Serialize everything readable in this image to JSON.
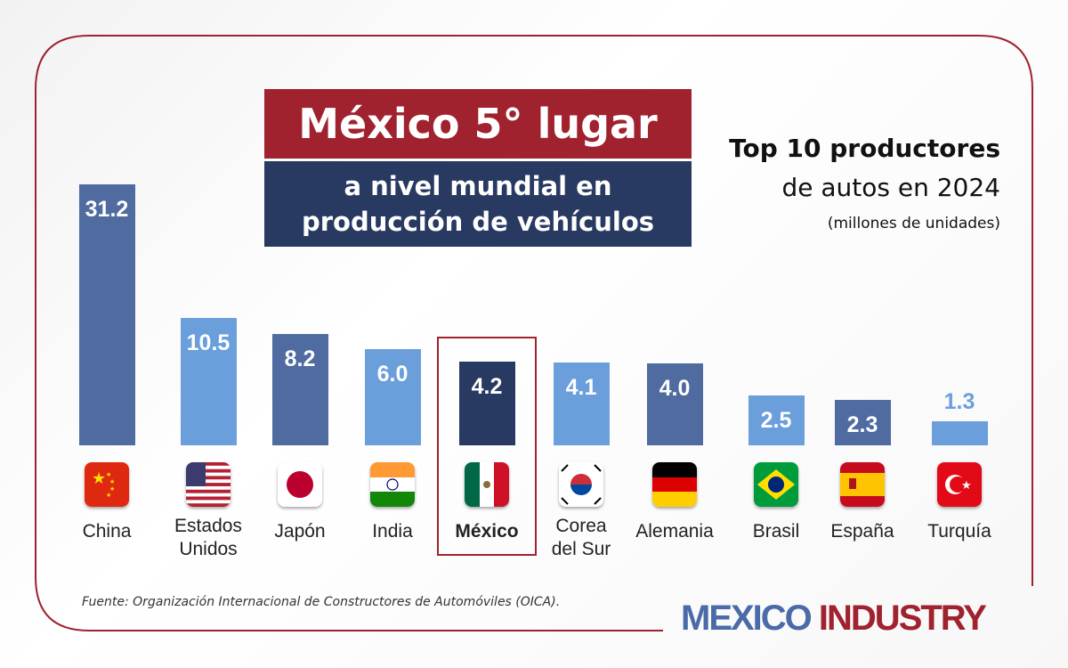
{
  "header": {
    "title": "México 5° lugar",
    "subtitle_line1": "a nivel mundial en",
    "subtitle_line2": "producción de vehículos"
  },
  "side": {
    "line1": "Top 10 productores",
    "line2": "de autos en 2024",
    "line3": "(millones de unidades)"
  },
  "footer": {
    "source": "Fuente: Organización Internacional de Constructores de Automóviles (OICA).",
    "logo_part1": "MEXICO",
    "logo_part2": "INDUSTRY"
  },
  "colors": {
    "dark_bar": "#4f6ba0",
    "light_bar": "#6a9fdc",
    "highlight_bar": "#283a61",
    "accent_red": "#a0222e"
  },
  "chart_data": {
    "type": "bar",
    "title": "Top 10 productores de autos en 2024",
    "ylabel": "(millones de unidades)",
    "categories": [
      "China",
      "Estados Unidos",
      "Japón",
      "India",
      "México",
      "Corea del Sur",
      "Alemania",
      "Brasil",
      "España",
      "Turquía"
    ],
    "label_lines": [
      [
        "China"
      ],
      [
        "Estados",
        "Unidos"
      ],
      [
        "Japón"
      ],
      [
        "India"
      ],
      [
        "México"
      ],
      [
        "Corea",
        "del Sur"
      ],
      [
        "Alemania"
      ],
      [
        "Brasil"
      ],
      [
        "España"
      ],
      [
        "Turquía"
      ]
    ],
    "values": [
      31.2,
      10.5,
      8.2,
      6.0,
      4.2,
      4.1,
      4.0,
      2.5,
      2.3,
      1.3
    ],
    "value_labels": [
      "31.2",
      "10.5",
      "8.2",
      "6.0",
      "4.2",
      "4.1",
      "4.0",
      "2.5",
      "2.3",
      "1.3"
    ],
    "highlight": "México",
    "flag_icons": [
      "china-flag-icon",
      "usa-flag-icon",
      "japan-flag-icon",
      "india-flag-icon",
      "mexico-flag-icon",
      "south-korea-flag-icon",
      "germany-flag-icon",
      "brazil-flag-icon",
      "spain-flag-icon",
      "turkey-flag-icon"
    ]
  }
}
